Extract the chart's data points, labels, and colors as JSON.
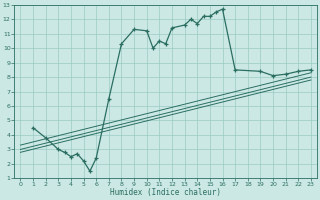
{
  "xlabel": "Humidex (Indice chaleur)",
  "bg_color": "#cce8e4",
  "grid_color": "#99ccc4",
  "line_color": "#2a6e62",
  "xlim": [
    -0.5,
    23.5
  ],
  "ylim": [
    1,
    13
  ],
  "xticks": [
    0,
    1,
    2,
    3,
    4,
    5,
    6,
    7,
    8,
    9,
    10,
    11,
    12,
    13,
    14,
    15,
    16,
    17,
    18,
    19,
    20,
    21,
    22,
    23
  ],
  "yticks": [
    1,
    2,
    3,
    4,
    5,
    6,
    7,
    8,
    9,
    10,
    11,
    12,
    13
  ],
  "main_line_x": [
    1,
    2,
    3,
    3.5,
    4,
    4.5,
    5,
    5.5,
    6,
    7,
    8,
    9,
    10,
    10.5,
    11,
    11.5,
    12,
    13,
    13.5,
    14,
    14.5,
    15,
    15.5,
    16,
    17,
    19,
    20,
    21,
    22,
    23
  ],
  "main_line_y": [
    4.5,
    3.8,
    3.0,
    2.8,
    2.5,
    2.7,
    2.2,
    1.5,
    2.4,
    6.5,
    10.3,
    11.3,
    11.2,
    10.0,
    10.5,
    10.3,
    11.4,
    11.6,
    12.0,
    11.7,
    12.2,
    12.2,
    12.5,
    12.7,
    8.5,
    8.4,
    8.1,
    8.2,
    8.4,
    8.5
  ],
  "reg_line1_x": [
    0,
    23
  ],
  "reg_line1_y": [
    2.8,
    7.8
  ],
  "reg_line2_x": [
    0,
    23
  ],
  "reg_line2_y": [
    3.0,
    8.0
  ],
  "reg_line3_x": [
    0,
    23
  ],
  "reg_line3_y": [
    3.3,
    8.3
  ]
}
